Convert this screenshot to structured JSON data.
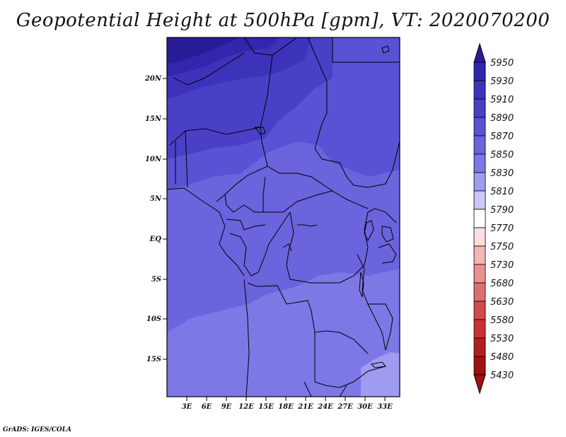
{
  "title": "Geopotential Height at 500hPa [gpm], VT: 2020070200",
  "credit": "GrADS: IGES/COLA",
  "y_labels": [
    "20N",
    "15N",
    "10N",
    "5N",
    "EQ",
    "5S",
    "10S",
    "15S"
  ],
  "x_labels": [
    "3E",
    "6E",
    "9E",
    "12E",
    "15E",
    "18E",
    "21E",
    "24E",
    "27E",
    "30E",
    "33E"
  ],
  "colorbar": {
    "labels": [
      "5950",
      "5930",
      "5910",
      "5890",
      "5870",
      "5850",
      "5830",
      "5810",
      "5790",
      "5770",
      "5750",
      "5730",
      "5680",
      "5630",
      "5580",
      "5530",
      "5480",
      "5430"
    ],
    "colors": [
      "#2a1c97",
      "#3325ad",
      "#3d33bb",
      "#4a40c8",
      "#5a52d4",
      "#6b64dd",
      "#7d78e6",
      "#9f9cf0",
      "#c9c8f8",
      "#ffffff",
      "#fbdede",
      "#f4b5b5",
      "#eb9090",
      "#e06d6d",
      "#d44a4a",
      "#c83232",
      "#b51e1e",
      "#a01212"
    ]
  },
  "palette": {
    "dark": "#2a1c97",
    "band1": "#3325ad",
    "band2": "#3d33bb",
    "band3": "#4a40c8",
    "band4": "#5a52d4",
    "band5": "#6b64dd",
    "band6": "#7d78e6",
    "light": "#9f9cf0"
  }
}
